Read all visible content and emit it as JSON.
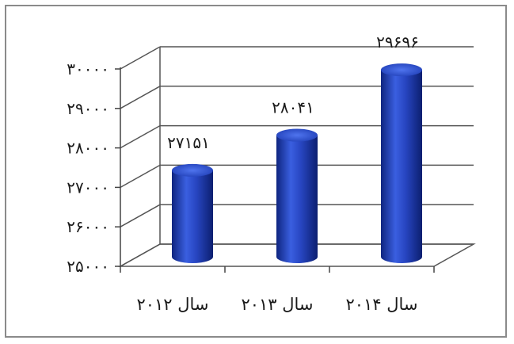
{
  "chart_data": {
    "type": "bar",
    "style": "3d-cylinder",
    "categories": [
      "سال ۲۰۱۲",
      "سال ۲۰۱۳",
      "سال ۲۰۱۴"
    ],
    "values": [
      27151,
      28041,
      29696
    ],
    "data_labels": [
      "۲۷۱۵۱",
      "۲۸۰۴۱",
      "۲۹۶۹۶"
    ],
    "ylim": [
      25000,
      30000
    ],
    "y_ticks": [
      25000,
      26000,
      27000,
      28000,
      29000,
      30000
    ],
    "y_tick_labels": [
      "۲۵۰۰۰",
      "۲۶۰۰۰",
      "۲۷۰۰۰",
      "۲۸۰۰۰",
      "۲۹۰۰۰",
      "۳۰۰۰۰"
    ],
    "grid": true,
    "legend": "none",
    "bar_color": "#1f3fb0",
    "title": "",
    "xlabel": "",
    "ylabel": ""
  }
}
